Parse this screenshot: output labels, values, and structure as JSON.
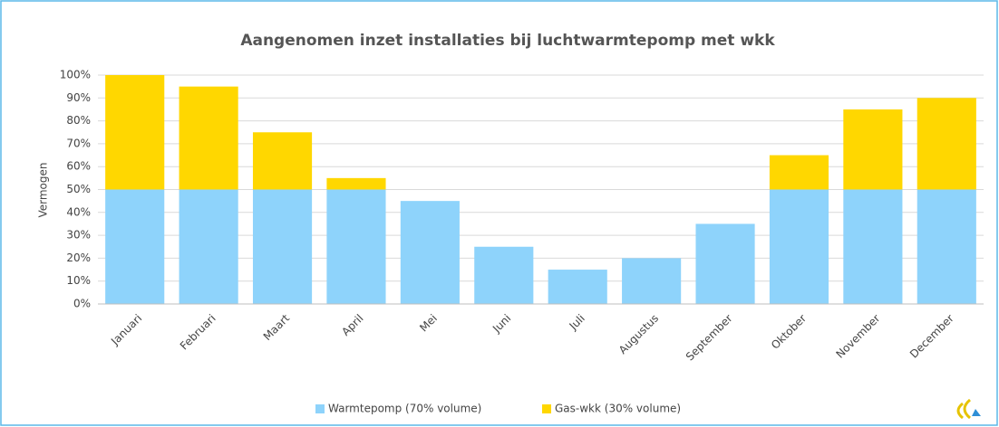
{
  "chart_data": {
    "type": "stacked_bar",
    "title": "Aangenomen inzet installaties bij luchtwarmtepomp met wkk",
    "ylabel": "Vermogen",
    "categories": [
      "Januari",
      "Februari",
      "Maart",
      "April",
      "Mei",
      "Juni",
      "Juli",
      "Augustus",
      "September",
      "Oktober",
      "November",
      "December"
    ],
    "series": [
      {
        "name": "Warmtepomp (70% volume)",
        "color": "#8ed3fb",
        "values": [
          50,
          50,
          50,
          50,
          45,
          25,
          15,
          20,
          35,
          50,
          50,
          50
        ]
      },
      {
        "name": "Gas-wkk (30% volume)",
        "color": "#ffd700",
        "values": [
          50,
          45,
          25,
          5,
          0,
          0,
          0,
          0,
          0,
          15,
          35,
          40
        ]
      }
    ],
    "ylim": [
      0,
      100
    ],
    "yticks": [
      {
        "value": 0,
        "label": "0%"
      },
      {
        "value": 10,
        "label": "10%"
      },
      {
        "value": 20,
        "label": "20%"
      },
      {
        "value": 30,
        "label": "30%"
      },
      {
        "value": 40,
        "label": "40%"
      },
      {
        "value": 50,
        "label": "50%"
      },
      {
        "value": 60,
        "label": "60%"
      },
      {
        "value": 70,
        "label": "70%"
      },
      {
        "value": 80,
        "label": "80%"
      },
      {
        "value": 90,
        "label": "90%"
      },
      {
        "value": 100,
        "label": "100%"
      }
    ],
    "grid": true,
    "legend": "bottom"
  }
}
